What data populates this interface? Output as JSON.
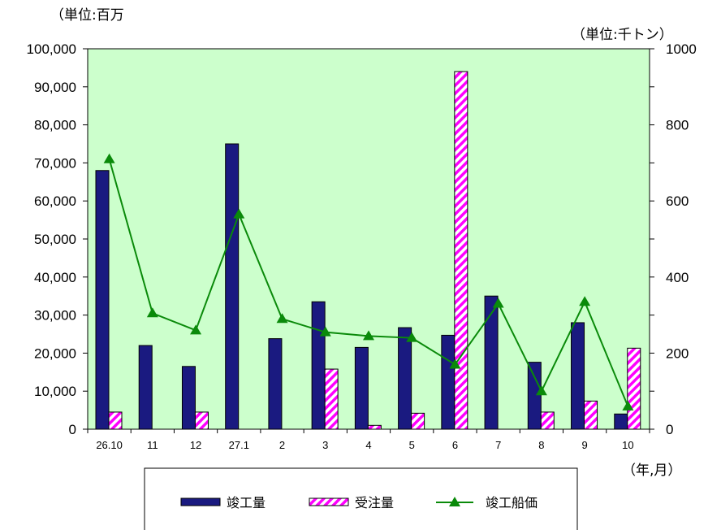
{
  "chart_data": {
    "type": "bar",
    "categories": [
      "26.10",
      "11",
      "12",
      "27.1",
      "2",
      "3",
      "4",
      "5",
      "6",
      "7",
      "8",
      "9",
      "10"
    ],
    "series": [
      {
        "name": "竣工量",
        "axis": "left",
        "kind": "bar",
        "color": "#1a1a80",
        "values": [
          68000,
          22000,
          16500,
          75000,
          23800,
          33500,
          21500,
          26700,
          24700,
          35000,
          17600,
          28000,
          4000
        ]
      },
      {
        "name": "受注量",
        "axis": "left",
        "kind": "bar",
        "pattern": "hatched",
        "color": "#ff00ff",
        "values": [
          4500,
          0,
          4500,
          0,
          0,
          15800,
          1000,
          4200,
          94000,
          0,
          4500,
          7400,
          21300
        ]
      },
      {
        "name": "竣工船価",
        "axis": "right",
        "kind": "line",
        "marker": "triangle",
        "color": "#0a8a0a",
        "values": [
          710,
          305,
          260,
          565,
          290,
          255,
          245,
          240,
          170,
          330,
          100,
          335,
          60
        ]
      }
    ],
    "left_unit": "（単位:百万",
    "right_unit": "（単位:千トン）",
    "x_unit": "（年,月）",
    "ylim_left": [
      0,
      100000
    ],
    "ylim_right": [
      0,
      1000
    ],
    "left_ticks": [
      "0",
      "10,000",
      "20,000",
      "30,000",
      "40,000",
      "50,000",
      "60,000",
      "70,000",
      "80,000",
      "90,000",
      "100,000"
    ],
    "right_ticks": [
      "0",
      "200",
      "400",
      "600",
      "800",
      "1000"
    ],
    "plot_background": "#ccffcc",
    "grid": false,
    "legend_position": "bottom"
  }
}
